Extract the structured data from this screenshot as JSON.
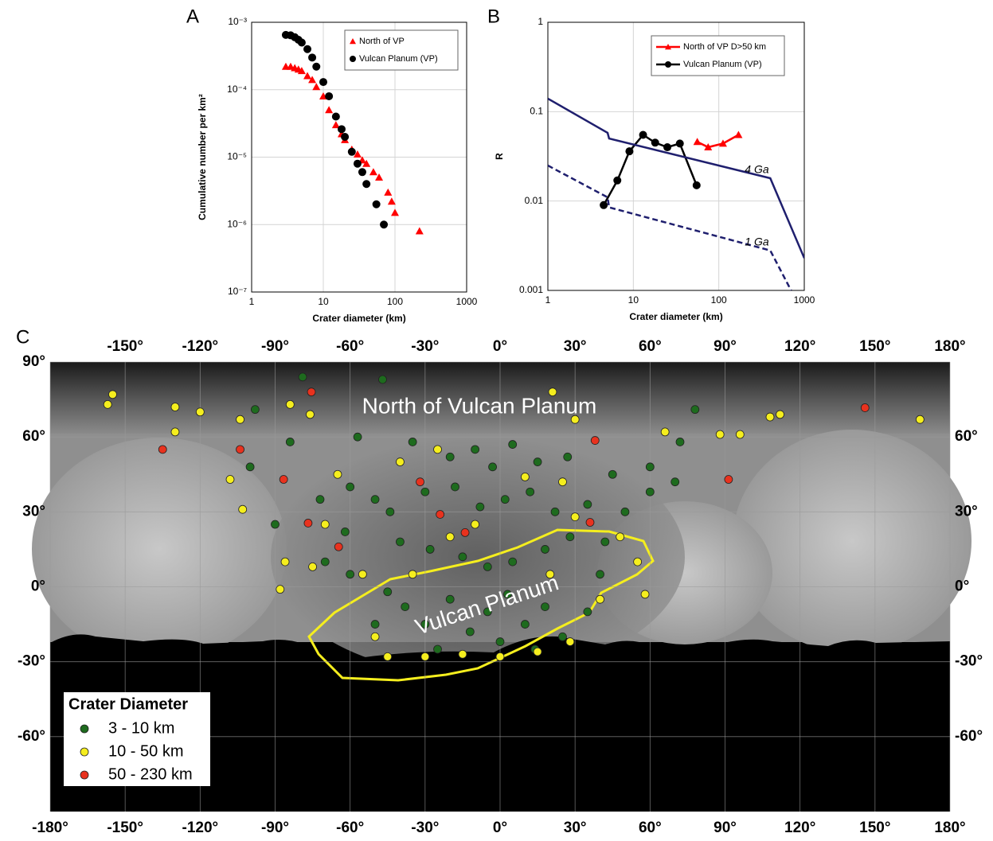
{
  "chart_data": [
    {
      "type": "scatter",
      "panel": "A",
      "xscale": "log",
      "yscale": "log",
      "grid": true,
      "legend": "upper right",
      "xlabel": "Crater diameter (km)",
      "ylabel": "Cumulative number per km²",
      "xlim": [
        1,
        1000
      ],
      "xticks": [
        1,
        10,
        100,
        1000
      ],
      "ylim": [
        1e-07,
        0.001
      ],
      "yticks": [
        {
          "value": 1e-07,
          "label": "10⁻⁷"
        },
        {
          "value": 1e-06,
          "label": "10⁻⁶"
        },
        {
          "value": 1e-05,
          "label": "10⁻⁵"
        },
        {
          "value": 0.0001,
          "label": "10⁻⁴"
        },
        {
          "value": 0.001,
          "label": "10⁻³"
        }
      ],
      "series": [
        {
          "name": "North of VP",
          "color": "#ff0000",
          "marker": "triangle",
          "x": [
            3,
            3.5,
            4,
            4.5,
            5,
            6,
            7,
            8,
            10,
            12,
            15,
            18,
            20,
            25,
            30,
            35,
            40,
            50,
            60,
            80,
            90,
            100,
            220
          ],
          "values": [
            0.00022,
            0.00022,
            0.00021,
            0.0002,
            0.00019,
            0.00016,
            0.00014,
            0.00011,
            8e-05,
            5e-05,
            3e-05,
            2.2e-05,
            1.8e-05,
            1.3e-05,
            1.1e-05,
            9e-06,
            8e-06,
            6e-06,
            5e-06,
            3e-06,
            2.2e-06,
            1.5e-06,
            8e-07
          ]
        },
        {
          "name": "Vulcan Planum (VP)",
          "color": "#000000",
          "marker": "circle",
          "x": [
            3,
            3.5,
            4,
            4.5,
            5,
            6,
            7,
            8,
            10,
            12,
            15,
            18,
            20,
            25,
            30,
            35,
            40,
            55,
            70
          ],
          "values": [
            0.00065,
            0.00064,
            0.0006,
            0.00055,
            0.0005,
            0.0004,
            0.0003,
            0.00022,
            0.00013,
            8e-05,
            4e-05,
            2.6e-05,
            2e-05,
            1.2e-05,
            8e-06,
            6e-06,
            4e-06,
            2e-06,
            1e-06
          ]
        }
      ]
    },
    {
      "type": "line",
      "panel": "B",
      "xscale": "log",
      "yscale": "log",
      "grid": true,
      "legend": "upper right",
      "xlabel": "Crater diameter (km)",
      "ylabel": "R",
      "xlim": [
        1,
        1000
      ],
      "xticks": [
        1,
        10,
        100,
        1000
      ],
      "ylim": [
        0.001,
        1
      ],
      "yticks": [
        0.001,
        0.01,
        0.1,
        1
      ],
      "series": [
        {
          "name": "North of VP D>50 km",
          "color": "#ff0000",
          "marker": "triangle",
          "x": [
            56,
            75,
            112,
            170
          ],
          "values": [
            0.046,
            0.04,
            0.044,
            0.055
          ]
        },
        {
          "name": "Vulcan Planum (VP)",
          "color": "#000000",
          "marker": "circle",
          "x": [
            4.5,
            6.5,
            9,
            13,
            18,
            25,
            35,
            55
          ],
          "values": [
            0.009,
            0.017,
            0.036,
            0.055,
            0.045,
            0.04,
            0.044,
            0.015
          ]
        },
        {
          "name": "4 Ga",
          "color": "#1f1f6e",
          "inline_label": true,
          "dashed": false,
          "x": [
            1,
            5,
            5.2,
            400,
            1000
          ],
          "values": [
            0.14,
            0.058,
            0.05,
            0.018,
            0.0023
          ]
        },
        {
          "name": "1 Ga",
          "color": "#1f1f6e",
          "inline_label": true,
          "dashed": true,
          "x": [
            1,
            5,
            5.2,
            400,
            700
          ],
          "values": [
            0.025,
            0.011,
            0.0085,
            0.0028,
            0.001
          ]
        }
      ]
    },
    {
      "type": "map",
      "panel": "C",
      "legend": "lower left",
      "legend_title": "Crater Diameter",
      "annotations": [
        "North of Vulcan Planum",
        "Vulcan Planum"
      ],
      "xlim": [
        -180,
        180
      ],
      "xticks": [
        {
          "value": -180,
          "label": "-180°"
        },
        {
          "value": -150,
          "label": "-150°"
        },
        {
          "value": -120,
          "label": "-120°"
        },
        {
          "value": -90,
          "label": "-90°"
        },
        {
          "value": -60,
          "label": "-60°"
        },
        {
          "value": -30,
          "label": "-30°"
        },
        {
          "value": 0,
          "label": "0°"
        },
        {
          "value": 30,
          "label": "30°"
        },
        {
          "value": 60,
          "label": "60°"
        },
        {
          "value": 90,
          "label": "90°"
        },
        {
          "value": 120,
          "label": "120°"
        },
        {
          "value": 150,
          "label": "150°"
        },
        {
          "value": 180,
          "label": "180°"
        }
      ],
      "ylim": [
        -90,
        90
      ],
      "yticks": [
        {
          "value": 90,
          "label": "90°"
        },
        {
          "value": 60,
          "label": "60°"
        },
        {
          "value": 30,
          "label": "30°"
        },
        {
          "value": 0,
          "label": "0°"
        },
        {
          "value": -30,
          "label": "-30°"
        },
        {
          "value": -60,
          "label": "-60°"
        }
      ],
      "series": [
        {
          "name": "3 - 10 km",
          "color": "#1e6b1e",
          "x": [
            -79,
            -47,
            -98,
            78,
            -84,
            -57,
            -35,
            -20,
            -10,
            5,
            -3,
            15,
            27,
            45,
            60,
            72,
            70,
            -60,
            -50,
            -44,
            -30,
            -18,
            -8,
            2,
            12,
            22,
            35,
            50,
            60,
            -90,
            -72,
            -62,
            -40,
            -28,
            -15,
            -5,
            5,
            18,
            28,
            42,
            -45,
            -38,
            -30,
            -20,
            -12,
            -5,
            3,
            10,
            18,
            25,
            35,
            -50,
            -25,
            0,
            14,
            -100,
            -60,
            40,
            -70
          ],
          "values": [
            84,
            83,
            71,
            71,
            58,
            60,
            58,
            52,
            55,
            57,
            48,
            50,
            52,
            45,
            48,
            58,
            42,
            40,
            35,
            30,
            38,
            40,
            32,
            35,
            38,
            30,
            33,
            30,
            38,
            25,
            35,
            22,
            18,
            15,
            12,
            8,
            10,
            15,
            20,
            18,
            -2,
            -8,
            -15,
            -5,
            -18,
            -10,
            -3,
            -15,
            -8,
            -20,
            -10,
            -15,
            -25,
            -22,
            -25,
            48,
            5,
            5,
            10
          ]
        },
        {
          "name": "10 - 50 km",
          "color": "#f5ee1e",
          "x": [
            -155,
            -157,
            -130,
            -120,
            -104,
            -130,
            -108,
            -103,
            -84,
            -76,
            21,
            30,
            96,
            108,
            112,
            168,
            88,
            66,
            -65,
            -40,
            -25,
            10,
            25,
            -86,
            -88,
            -75,
            -70,
            -55,
            -50,
            -45,
            -30,
            -15,
            0,
            15,
            28,
            40,
            48,
            55,
            -35,
            -10,
            20,
            -20,
            30,
            58
          ],
          "values": [
            77,
            73,
            72,
            70,
            67,
            62,
            43,
            31,
            73,
            69,
            78,
            67,
            61,
            68,
            69,
            67,
            61,
            62,
            45,
            50,
            55,
            44,
            42,
            10,
            -1,
            8,
            25,
            5,
            -20,
            -28,
            -28,
            -27,
            -28,
            -26,
            -22,
            -5,
            20,
            10,
            5,
            25,
            5,
            20,
            28,
            -3
          ]
        },
        {
          "name": "50 - 230 km",
          "color": "#e8321e",
          "x": [
            -75.5,
            -135,
            -104,
            -86.6,
            -76.8,
            -64.6,
            -32,
            -24,
            -14,
            36,
            38,
            91.4,
            146
          ],
          "values": [
            78,
            55,
            55,
            43,
            25.5,
            16,
            42,
            29,
            21.7,
            25.8,
            58.6,
            43,
            71.7
          ]
        }
      ]
    }
  ]
}
